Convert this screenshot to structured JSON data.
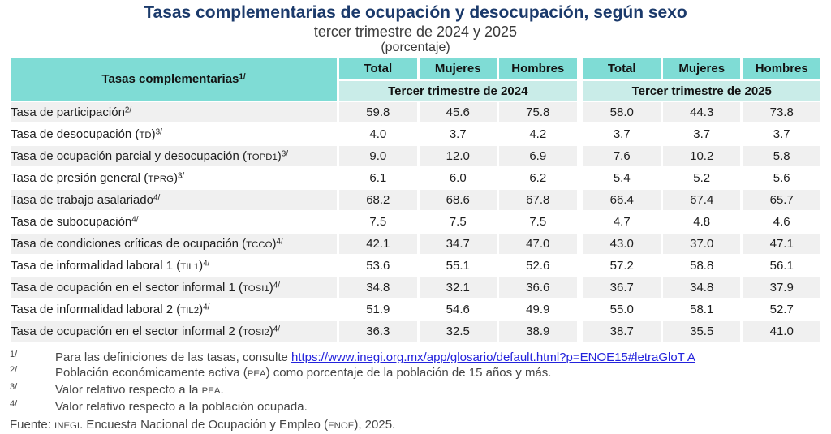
{
  "title": "Tasas complementarias de ocupación y desocupación, según sexo",
  "subtitle": "tercer trimestre de 2024 y 2025",
  "unit": "(porcentaje)",
  "colors": {
    "header_teal": "#7FDCD5",
    "year_teal": "#C9ECE8",
    "stripe_gray": "#F0F0F0",
    "title_navy": "#1B3A6B",
    "link_blue": "#2322DC"
  },
  "table": {
    "header": {
      "label": "Tasas complementarias",
      "label_sup": "1/",
      "groups": [
        {
          "year": "Tercer trimestre de 2024",
          "cols": [
            "Total",
            "Mujeres",
            "Hombres"
          ]
        },
        {
          "year": "Tercer trimestre de 2025",
          "cols": [
            "Total",
            "Mujeres",
            "Hombres"
          ]
        }
      ]
    },
    "rows": [
      {
        "parts": [
          {
            "t": "text",
            "v": "Tasa de participación"
          }
        ],
        "sup": "2/",
        "values": [
          "59.8",
          "45.6",
          "75.8",
          "58.0",
          "44.3",
          "73.8"
        ]
      },
      {
        "parts": [
          {
            "t": "text",
            "v": "Tasa de desocupación ("
          },
          {
            "t": "sc",
            "v": "TD"
          },
          {
            "t": "text",
            "v": ")"
          }
        ],
        "sup": "3/",
        "values": [
          "4.0",
          "3.7",
          "4.2",
          "3.7",
          "3.7",
          "3.7"
        ]
      },
      {
        "parts": [
          {
            "t": "text",
            "v": "Tasa de ocupación parcial y desocupación ("
          },
          {
            "t": "sc",
            "v": "TOPD1"
          },
          {
            "t": "text",
            "v": ")"
          }
        ],
        "sup": "3/",
        "values": [
          "9.0",
          "12.0",
          "6.9",
          "7.6",
          "10.2",
          "5.8"
        ]
      },
      {
        "parts": [
          {
            "t": "text",
            "v": "Tasa de presión general ("
          },
          {
            "t": "sc",
            "v": "TPRG"
          },
          {
            "t": "text",
            "v": ")"
          }
        ],
        "sup": "3/",
        "values": [
          "6.1",
          "6.0",
          "6.2",
          "5.4",
          "5.2",
          "5.6"
        ]
      },
      {
        "parts": [
          {
            "t": "text",
            "v": "Tasa de trabajo asalariado"
          }
        ],
        "sup": "4/",
        "values": [
          "68.2",
          "68.6",
          "67.8",
          "66.4",
          "67.4",
          "65.7"
        ]
      },
      {
        "parts": [
          {
            "t": "text",
            "v": "Tasa de subocupación"
          }
        ],
        "sup": "4/",
        "values": [
          "7.5",
          "7.5",
          "7.5",
          "4.7",
          "4.8",
          "4.6"
        ]
      },
      {
        "parts": [
          {
            "t": "text",
            "v": "Tasa de condiciones críticas de ocupación ("
          },
          {
            "t": "sc",
            "v": "TCCO"
          },
          {
            "t": "text",
            "v": ")"
          }
        ],
        "sup": "4/",
        "values": [
          "42.1",
          "34.7",
          "47.0",
          "43.0",
          "37.0",
          "47.1"
        ]
      },
      {
        "parts": [
          {
            "t": "text",
            "v": "Tasa de informalidad laboral 1 ("
          },
          {
            "t": "sc",
            "v": "TIL1"
          },
          {
            "t": "text",
            "v": ")"
          }
        ],
        "sup": "4/",
        "values": [
          "53.6",
          "55.1",
          "52.6",
          "57.2",
          "58.8",
          "56.1"
        ]
      },
      {
        "parts": [
          {
            "t": "text",
            "v": "Tasa de ocupación en el sector informal 1 ("
          },
          {
            "t": "sc",
            "v": "TOSI1"
          },
          {
            "t": "text",
            "v": ")"
          }
        ],
        "sup": "4/",
        "values": [
          "34.8",
          "32.1",
          "36.6",
          "36.7",
          "34.8",
          "37.9"
        ]
      },
      {
        "parts": [
          {
            "t": "text",
            "v": "Tasa de informalidad laboral 2 ("
          },
          {
            "t": "sc",
            "v": "TIL2"
          },
          {
            "t": "text",
            "v": ")"
          }
        ],
        "sup": "4/",
        "values": [
          "51.9",
          "54.6",
          "49.9",
          "55.0",
          "58.1",
          "52.7"
        ]
      },
      {
        "parts": [
          {
            "t": "text",
            "v": "Tasa de ocupación en el sector informal 2 ("
          },
          {
            "t": "sc",
            "v": "TOSI2"
          },
          {
            "t": "text",
            "v": ")"
          }
        ],
        "sup": "4/",
        "values": [
          "36.3",
          "32.5",
          "38.9",
          "38.7",
          "35.5",
          "41.0"
        ]
      }
    ]
  },
  "footnotes": [
    {
      "sup": "1/",
      "parts": [
        {
          "t": "text",
          "v": "Para las definiciones de las tasas, consulte "
        },
        {
          "t": "link",
          "v": "https://www.inegi.org.mx/app/glosario/default.html?p=ENOE15#letraGloT A"
        }
      ]
    },
    {
      "sup": "2/",
      "parts": [
        {
          "t": "text",
          "v": "Población económicamente activa ("
        },
        {
          "t": "sc",
          "v": "PEA"
        },
        {
          "t": "text",
          "v": ") como porcentaje de la población de 15 años y más."
        }
      ]
    },
    {
      "sup": "3/",
      "parts": [
        {
          "t": "text",
          "v": "Valor relativo respecto a la "
        },
        {
          "t": "sc",
          "v": "PEA"
        },
        {
          "t": "text",
          "v": "."
        }
      ]
    },
    {
      "sup": "4/",
      "parts": [
        {
          "t": "text",
          "v": "Valor relativo respecto a la población ocupada."
        }
      ]
    }
  ],
  "source": {
    "parts": [
      {
        "t": "text",
        "v": "Fuente: "
      },
      {
        "t": "sc",
        "v": "INEGI"
      },
      {
        "t": "text",
        "v": ". Encuesta Nacional de Ocupación y Empleo ("
      },
      {
        "t": "sc",
        "v": "ENOE"
      },
      {
        "t": "text",
        "v": "), 2025."
      }
    ]
  },
  "chart_data": {
    "type": "table",
    "title": "Tasas complementarias de ocupación y desocupación, según sexo",
    "subtitle": "tercer trimestre de 2024 y 2025",
    "unit": "porcentaje",
    "categories": [
      "Tasa de participación",
      "Tasa de desocupación (TD)",
      "Tasa de ocupación parcial y desocupación (TOPD1)",
      "Tasa de presión general (TPRG)",
      "Tasa de trabajo asalariado",
      "Tasa de subocupación",
      "Tasa de condiciones críticas de ocupación (TCCO)",
      "Tasa de informalidad laboral 1 (TIL1)",
      "Tasa de ocupación en el sector informal 1 (TOSI1)",
      "Tasa de informalidad laboral 2 (TIL2)",
      "Tasa de ocupación en el sector informal 2 (TOSI2)"
    ],
    "series": [
      {
        "name": "Total — Tercer trimestre de 2024",
        "values": [
          59.8,
          4.0,
          9.0,
          6.1,
          68.2,
          7.5,
          42.1,
          53.6,
          34.8,
          51.9,
          36.3
        ]
      },
      {
        "name": "Mujeres — Tercer trimestre de 2024",
        "values": [
          45.6,
          3.7,
          12.0,
          6.0,
          68.6,
          7.5,
          34.7,
          55.1,
          32.1,
          54.6,
          32.5
        ]
      },
      {
        "name": "Hombres — Tercer trimestre de 2024",
        "values": [
          75.8,
          4.2,
          6.9,
          6.2,
          67.8,
          7.5,
          47.0,
          52.6,
          36.6,
          49.9,
          38.9
        ]
      },
      {
        "name": "Total — Tercer trimestre de 2025",
        "values": [
          58.0,
          3.7,
          7.6,
          5.4,
          66.4,
          4.7,
          43.0,
          57.2,
          36.7,
          55.0,
          38.7
        ]
      },
      {
        "name": "Mujeres — Tercer trimestre de 2025",
        "values": [
          44.3,
          3.7,
          10.2,
          5.2,
          67.4,
          4.8,
          37.0,
          58.8,
          34.8,
          58.1,
          35.5
        ]
      },
      {
        "name": "Hombres — Tercer trimestre de 2025",
        "values": [
          73.8,
          3.7,
          5.8,
          5.6,
          65.7,
          4.6,
          47.1,
          56.1,
          37.9,
          52.7,
          41.0
        ]
      }
    ]
  }
}
